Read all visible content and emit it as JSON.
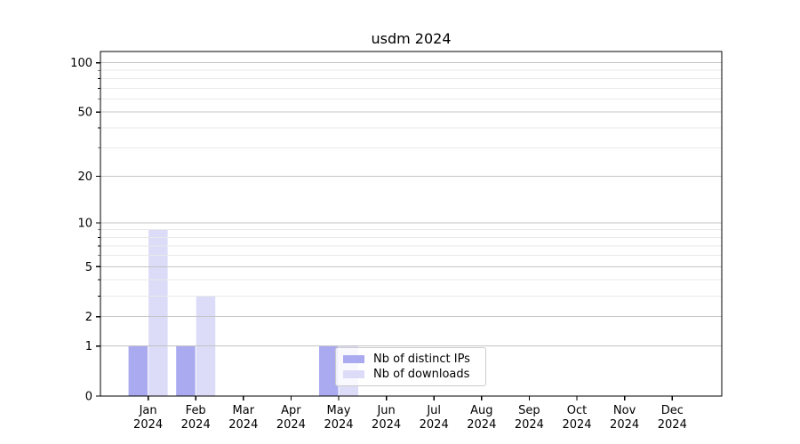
{
  "chart_data": {
    "type": "bar",
    "title": "usdm 2024",
    "months": [
      "Jan",
      "Feb",
      "Mar",
      "Apr",
      "May",
      "Jun",
      "Jul",
      "Aug",
      "Sep",
      "Oct",
      "Nov",
      "Dec"
    ],
    "year": "2024",
    "series": [
      {
        "name": "Nb of distinct IPs",
        "color": "#aaaaf0",
        "values": [
          1,
          1,
          0,
          0,
          1,
          0,
          0,
          0,
          0,
          0,
          0,
          0
        ]
      },
      {
        "name": "Nb of downloads",
        "color": "#dcdcf8",
        "values": [
          9,
          3,
          0,
          0,
          1,
          0,
          0,
          0,
          0,
          0,
          0,
          0
        ]
      }
    ],
    "yscale": "log1p",
    "ylim": [
      0,
      117
    ],
    "yticks_major": [
      0,
      1,
      2,
      5,
      10,
      20,
      50,
      100
    ],
    "yticks_minor": [
      3,
      4,
      6,
      7,
      8,
      9,
      30,
      40,
      60,
      70,
      80,
      90
    ],
    "grid": true,
    "legend_position": "inside-lower-center",
    "colors": {
      "axis": "#000000",
      "text": "#000000",
      "major_grid": "#c4c4c4",
      "minor_grid": "#e9e9e9",
      "background": "#ffffff"
    }
  }
}
